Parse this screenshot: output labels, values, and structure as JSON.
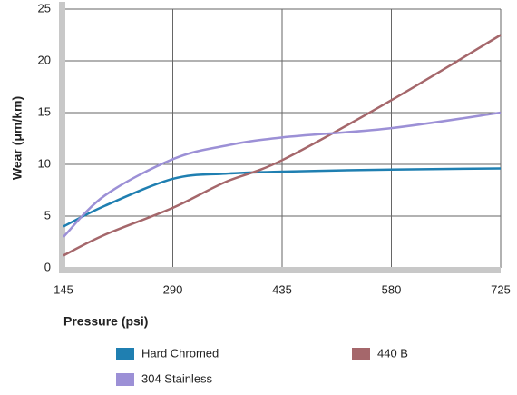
{
  "chart_data": {
    "type": "line",
    "x_label": "Pressure (psi)",
    "y_label": "Wear (μm/km)",
    "x": [
      145,
      200,
      290,
      360,
      435,
      580,
      725
    ],
    "series": [
      {
        "name": "Hard Chromed",
        "color": "#1f7fb1",
        "values": [
          4.0,
          6.0,
          8.6,
          9.1,
          9.3,
          9.5,
          9.6
        ]
      },
      {
        "name": "440 B",
        "color": "#a5676b",
        "values": [
          1.2,
          3.2,
          5.8,
          8.3,
          10.4,
          16.2,
          22.5
        ]
      },
      {
        "name": "304 Stainless",
        "color": "#9c90d6",
        "values": [
          3.0,
          7.0,
          10.5,
          11.8,
          12.6,
          13.5,
          15.0
        ]
      }
    ],
    "xlim": [
      145,
      725
    ],
    "xticks": [
      145,
      290,
      435,
      580,
      725
    ],
    "ylim": [
      0,
      25
    ],
    "yticks": [
      0,
      5,
      10,
      15,
      20,
      25
    ],
    "grid": true
  }
}
